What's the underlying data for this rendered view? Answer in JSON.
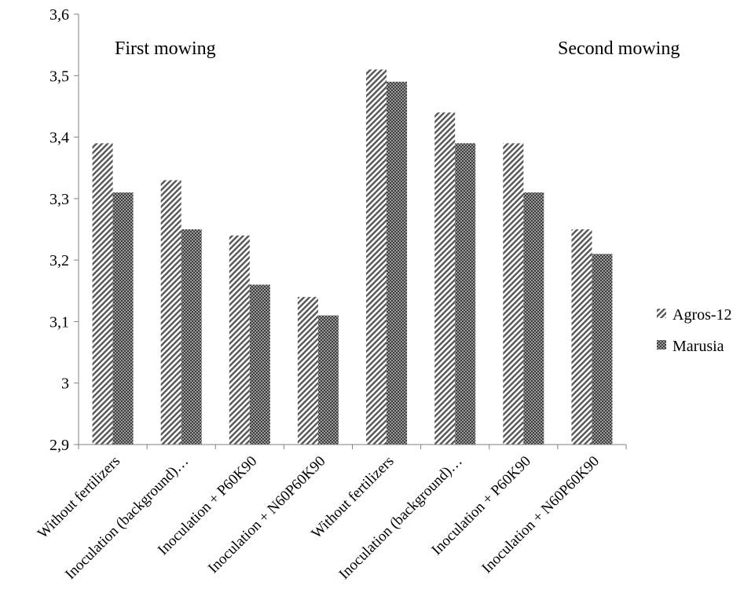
{
  "chart_data": {
    "type": "bar",
    "categories": [
      "Without fertilizers",
      "Inoculation (background)…",
      "Inoculation + P60K90",
      "Inoculation + N60P60K90",
      "Without fertilizers",
      "Inoculation (background)…",
      "Inoculation + P60K90",
      "Inoculation + N60P60K90"
    ],
    "series": [
      {
        "name": "Agros-12",
        "values": [
          3.39,
          3.33,
          3.24,
          3.14,
          3.51,
          3.44,
          3.39,
          3.25
        ],
        "pattern": "diagonal-hatch",
        "color": "#555555"
      },
      {
        "name": "Marusia",
        "values": [
          3.31,
          3.25,
          3.16,
          3.11,
          3.49,
          3.39,
          3.31,
          3.21
        ],
        "pattern": "checker",
        "color": "#6a6a6a"
      }
    ],
    "ylim": [
      2.9,
      3.6
    ],
    "yticks": [
      "2,9",
      "3",
      "3,1",
      "3,2",
      "3,3",
      "3,4",
      "3,5",
      "3,6"
    ],
    "annotations": [
      "First mowing",
      "Second mowing"
    ],
    "legend_position": "right",
    "grid": false
  }
}
